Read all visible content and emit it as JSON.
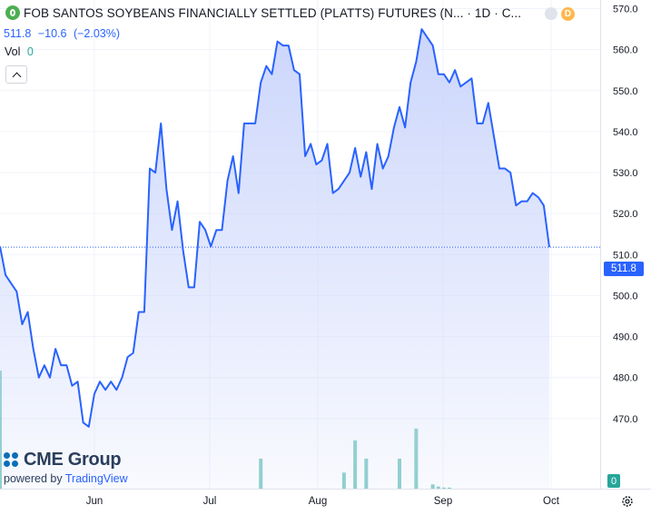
{
  "header": {
    "title": "FOB SANTOS SOYBEANS FINANCIALLY SETTLED (PLATTS) FUTURES (N...",
    "sep1": "·",
    "interval": "1D",
    "sep2": "·",
    "exchange_abbr": "C...",
    "last": "511.8",
    "change": "−10.6",
    "change_pct": "(−2.03%)",
    "vol_label": "Vol",
    "vol_value": "0",
    "data_badge": "D"
  },
  "colors": {
    "line": "#2962ff",
    "area_top": "#c9d4fb",
    "volume": "#26a69a",
    "axis_text": "#131722",
    "grid": "#f0f3fa"
  },
  "price_tag": "511.8",
  "volume_tag": "0",
  "branding": {
    "brand_name": "CME Group",
    "powered_prefix": "powered by",
    "powered_name": "TradingView"
  },
  "chart_data": {
    "type": "area",
    "title": "FOB SANTOS SOYBEANS FINANCIALLY SETTLED (PLATTS) FUTURES (N...",
    "ylim": [
      465,
      572
    ],
    "y_ticks": [
      470,
      480,
      490,
      500,
      510,
      520,
      530,
      540,
      550,
      560,
      570
    ],
    "y_tick_labels": [
      "470.0",
      "480.0",
      "490.0",
      "500.0",
      "510.0",
      "520.0",
      "530.0",
      "540.0",
      "550.0",
      "560.0",
      "570.0"
    ],
    "x_ticks": [
      "Jun",
      "Jul",
      "Aug",
      "Sep",
      "Oct"
    ],
    "last_price": 511.8,
    "grid": true,
    "series": [
      {
        "type": "line",
        "values": [
          512,
          505,
          503,
          501,
          493,
          496,
          487,
          480,
          483,
          480,
          487,
          483,
          483,
          478,
          479,
          469,
          468,
          476,
          479,
          477,
          479,
          477,
          480,
          485,
          486,
          496,
          496,
          531,
          530,
          542,
          526,
          516,
          523,
          511,
          502,
          502,
          518,
          516,
          512,
          516,
          516,
          528,
          534,
          525,
          542,
          542,
          542,
          552,
          556,
          554,
          562,
          561,
          561,
          555,
          554,
          534,
          537,
          532,
          533,
          537,
          525,
          526,
          528,
          530,
          536,
          529,
          535,
          526,
          537,
          531,
          534,
          541,
          546,
          541,
          552,
          557,
          565,
          563,
          561,
          554,
          554,
          552,
          555,
          551,
          552,
          553,
          542,
          542,
          547,
          539,
          531,
          531,
          530,
          522,
          523,
          523,
          525,
          524,
          522,
          511.8
        ]
      },
      {
        "type": "volume",
        "values": [
          110,
          0,
          0,
          0,
          0,
          0,
          0,
          0,
          0,
          0,
          0,
          0,
          0,
          0,
          0,
          0,
          0,
          0,
          0,
          0,
          0,
          0,
          0,
          0,
          0,
          0,
          0,
          0,
          0,
          0,
          0,
          0,
          0,
          0,
          0,
          0,
          0,
          0,
          0,
          0,
          0,
          0,
          0,
          0,
          0,
          0,
          0,
          28,
          0,
          0,
          0,
          0,
          0,
          0,
          0,
          0,
          0,
          0,
          0,
          0,
          0,
          0,
          15,
          0,
          45,
          0,
          28,
          0,
          0,
          0,
          0,
          0,
          28,
          0,
          0,
          56,
          0,
          0,
          4,
          2,
          1,
          1,
          0,
          0,
          0,
          0,
          0,
          0,
          0,
          0,
          0,
          0,
          0,
          0,
          0,
          0,
          0,
          0,
          0,
          0
        ]
      }
    ]
  }
}
